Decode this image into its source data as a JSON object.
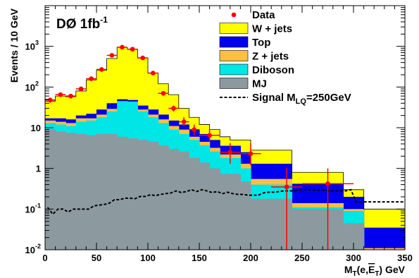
{
  "chart_data": {
    "type": "histogram-stacked",
    "title": "DØ 1fb",
    "title_sup": "-1",
    "xlabel": "M_T(e,E_T) GeV",
    "ylabel": "Events / 10 GeV",
    "x_scale": "linear",
    "y_scale": "log",
    "xlim": [
      0,
      350
    ],
    "ylim": [
      0.01,
      10000
    ],
    "x_ticks": [
      0,
      50,
      100,
      150,
      200,
      250,
      300,
      350
    ],
    "y_ticks": [
      {
        "value": 0.01,
        "base": "10",
        "exp": "-2"
      },
      {
        "value": 0.1,
        "base": "10",
        "exp": "-1"
      },
      {
        "value": 1,
        "base": "1",
        "exp": ""
      },
      {
        "value": 10,
        "base": "10",
        "exp": ""
      },
      {
        "value": 100,
        "base": "10",
        "exp": "2"
      },
      {
        "value": 1000,
        "base": "10",
        "exp": "3"
      }
    ],
    "bin_edges": [
      0,
      10,
      20,
      30,
      40,
      50,
      60,
      70,
      80,
      90,
      100,
      110,
      120,
      130,
      140,
      150,
      160,
      170,
      180,
      190,
      200,
      210,
      220,
      230,
      240,
      250,
      260,
      270,
      280,
      290,
      300,
      310,
      320,
      330,
      340,
      350
    ],
    "stack_totals": [
      {
        "name": "W + jets",
        "color": "#ffff00",
        "values": [
          45,
          60,
          58,
          80,
          150,
          260,
          500,
          950,
          850,
          520,
          220,
          120,
          65,
          30,
          18,
          12,
          9,
          6,
          5,
          5,
          2.8,
          2.8,
          2.8,
          2.8,
          0.8,
          0.8,
          0.8,
          0.8,
          0.8,
          0.3,
          0.3,
          0.1,
          0.1,
          0.1,
          0.1
        ]
      },
      {
        "name": "Top",
        "color": "#0000ee",
        "values": [
          17,
          17,
          16,
          20,
          22,
          28,
          40,
          50,
          48,
          35,
          28,
          21,
          15,
          12,
          9,
          7,
          5,
          3.6,
          3.6,
          2.5,
          1.3,
          1.3,
          1.3,
          1.3,
          0.42,
          0.42,
          0.42,
          0.42,
          0.42,
          0.2,
          0.2,
          0.035,
          0.035,
          0.035,
          0.035
        ]
      },
      {
        "name": "Z + jets",
        "color": "#ffbf3f",
        "values": [
          15,
          14,
          13,
          17,
          17,
          21,
          29,
          45,
          42,
          28,
          21,
          16,
          11,
          9,
          6,
          4.5,
          3.2,
          2.2,
          2.2,
          1.3,
          0.55,
          0.55,
          0.55,
          0.55,
          0.14,
          0.14,
          0.14,
          0.14,
          0.14,
          0.1,
          0.1,
          0.011,
          0.011,
          0.011,
          0.011
        ]
      },
      {
        "name": "Diboson",
        "color": "#00e5e5",
        "values": [
          13,
          12,
          11,
          14,
          15,
          18,
          25,
          45,
          44,
          25,
          18,
          13,
          9,
          7,
          5,
          3.7,
          2.6,
          1.8,
          1.8,
          1.0,
          0.4,
          0.4,
          0.4,
          0.4,
          0.11,
          0.11,
          0.11,
          0.11,
          0.11,
          0.09,
          0.09,
          0.01,
          0.01,
          0.01,
          0.01
        ]
      },
      {
        "name": "MJ",
        "color": "#8c9aa0",
        "values": [
          9,
          8,
          7.5,
          7,
          6.5,
          7,
          7,
          6,
          5.5,
          5,
          4.5,
          3.7,
          3,
          2.6,
          1.8,
          1.4,
          1.0,
          0.73,
          0.73,
          0.47,
          0.18,
          0.18,
          0.18,
          0.18,
          0.1,
          0.1,
          0.1,
          0.1,
          0.1,
          0.045,
          0.045,
          0.01,
          0.01,
          0.01,
          0.01
        ]
      }
    ],
    "signal": {
      "name": "Signal M_LQ=250GeV",
      "values": [
        0.11,
        0.075,
        0.1,
        0.1,
        0.085,
        0.1,
        0.1,
        0.1,
        0.1,
        0.12,
        0.125,
        0.13,
        0.14,
        0.17,
        0.17,
        0.185,
        0.185,
        0.18,
        0.205,
        0.205,
        0.225,
        0.215,
        0.23,
        0.24,
        0.25,
        0.28,
        0.255,
        0.27,
        0.3,
        0.27,
        0.3,
        0.28,
        0.255,
        0.27,
        0.24,
        0.26,
        0.24,
        0.23,
        0.23,
        0.22,
        0.22,
        0.22,
        0.25,
        0.26,
        0.26,
        0.27,
        0.28,
        0.28,
        0.28,
        0.29,
        0.3,
        0.3,
        0.29,
        0.29,
        0.29,
        0.28,
        0.28,
        0.28,
        0.28,
        0.3,
        0.15,
        0.15,
        0.15,
        0.15,
        0.15,
        0.15,
        0.15,
        0.15,
        0.15,
        0.15
      ]
    },
    "data_points": [
      {
        "x": 5,
        "y": 48,
        "xerr": 5,
        "ylo": 41,
        "yhi": 55
      },
      {
        "x": 15,
        "y": 65,
        "xerr": 5,
        "ylo": 57,
        "yhi": 73
      },
      {
        "x": 25,
        "y": 60,
        "xerr": 5,
        "ylo": 52,
        "yhi": 68
      },
      {
        "x": 35,
        "y": 90,
        "xerr": 5,
        "ylo": 81,
        "yhi": 99
      },
      {
        "x": 45,
        "y": 160,
        "xerr": 5,
        "ylo": 148,
        "yhi": 173
      },
      {
        "x": 55,
        "y": 270,
        "xerr": 5,
        "ylo": 254,
        "yhi": 286
      },
      {
        "x": 65,
        "y": 600,
        "xerr": 5,
        "ylo": 575,
        "yhi": 625
      },
      {
        "x": 75,
        "y": 950,
        "xerr": 5,
        "ylo": 919,
        "yhi": 981
      },
      {
        "x": 85,
        "y": 850,
        "xerr": 5,
        "ylo": 821,
        "yhi": 879
      },
      {
        "x": 95,
        "y": 520,
        "xerr": 5,
        "ylo": 497,
        "yhi": 543
      },
      {
        "x": 105,
        "y": 220,
        "xerr": 5,
        "ylo": 205,
        "yhi": 235
      },
      {
        "x": 115,
        "y": 70,
        "xerr": 5,
        "ylo": 62,
        "yhi": 78
      },
      {
        "x": 125,
        "y": 30,
        "xerr": 5,
        "ylo": 25,
        "yhi": 35
      },
      {
        "x": 135,
        "y": 14,
        "xerr": 5,
        "ylo": 11,
        "yhi": 18
      },
      {
        "x": 145,
        "y": 9,
        "xerr": 5,
        "ylo": 6.5,
        "yhi": 12
      },
      {
        "x": 160,
        "y": 6.5,
        "xerr": 10,
        "ylo": 4.6,
        "yhi": 9
      },
      {
        "x": 180,
        "y": 2.5,
        "xerr": 10,
        "ylo": 1.3,
        "yhi": 4.2
      },
      {
        "x": 200,
        "y": 2.3,
        "xerr": 10,
        "ylo": 1.2,
        "yhi": 4.2
      },
      {
        "x": 235,
        "y": 0.35,
        "xerr": 15,
        "ylo": 0.01,
        "yhi": 1.0
      },
      {
        "x": 275,
        "y": 0.42,
        "xerr": 25,
        "ylo": 0.01,
        "yhi": 1.0
      }
    ],
    "legend_position": "top-right",
    "legend": [
      {
        "label": "Data",
        "kind": "marker",
        "color": "#ff0000"
      },
      {
        "label": "W + jets",
        "kind": "box",
        "color": "#ffff00"
      },
      {
        "label": "Top",
        "kind": "box",
        "color": "#0000ee"
      },
      {
        "label": "Z + jets",
        "kind": "box",
        "color": "#ffbf3f"
      },
      {
        "label": "Diboson",
        "kind": "box",
        "color": "#00e5e5"
      },
      {
        "label": "MJ",
        "kind": "box",
        "color": "#8c9aa0"
      },
      {
        "label": "Signal M_LQ=250GeV",
        "kind": "dashed",
        "color": "#000000"
      }
    ],
    "data_marker_color": "#ff0000"
  }
}
